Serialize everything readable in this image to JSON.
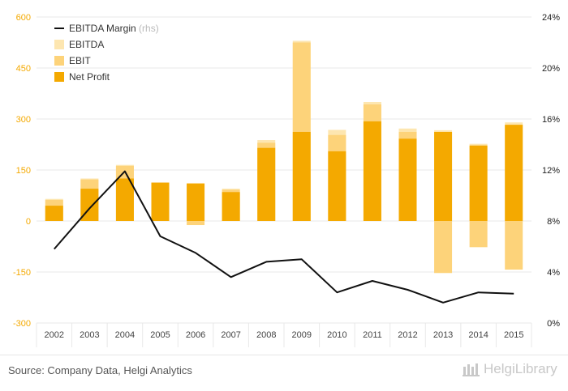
{
  "chart_data": {
    "type": "bar",
    "categories": [
      "2002",
      "2003",
      "2004",
      "2005",
      "2006",
      "2007",
      "2008",
      "2009",
      "2010",
      "2011",
      "2012",
      "2013",
      "2014",
      "2015"
    ],
    "series": [
      {
        "name": "EBITDA",
        "type": "bar",
        "color": "#fde6b0",
        "values": [
          65,
          125,
          165,
          113,
          112,
          95,
          238,
          530,
          268,
          350,
          272,
          267,
          227,
          290
        ]
      },
      {
        "name": "EBIT",
        "type": "bar",
        "color": "#fdd37a",
        "values": [
          62,
          122,
          162,
          110,
          -12,
          92,
          230,
          525,
          253,
          343,
          262,
          -153,
          -77,
          -143
        ]
      },
      {
        "name": "Net Profit",
        "type": "bar",
        "color": "#f4a900",
        "values": [
          45,
          95,
          125,
          113,
          110,
          85,
          215,
          262,
          205,
          293,
          242,
          262,
          222,
          283
        ]
      },
      {
        "name": "EBITDA Margin",
        "name_suffix": "(rhs)",
        "type": "line",
        "axis": "right",
        "color": "#111111",
        "values": [
          5.8,
          9.0,
          11.9,
          6.8,
          5.5,
          3.6,
          4.8,
          5.0,
          2.4,
          3.3,
          2.6,
          1.6,
          2.4,
          2.3
        ]
      }
    ],
    "legend_order": [
      "EBITDA Margin",
      "EBITDA",
      "EBIT",
      "Net Profit"
    ],
    "legend_placement": "top-left",
    "left_axis": {
      "min": -300,
      "max": 600,
      "ticks": [
        "600",
        "450",
        "300",
        "150",
        "0",
        "-150",
        "-300"
      ],
      "tick_values": [
        600,
        450,
        300,
        150,
        0,
        -150,
        -300
      ],
      "color": "#f4a900"
    },
    "right_axis": {
      "min": 0,
      "max": 24,
      "ticks": [
        "24%",
        "20%",
        "16%",
        "12%",
        "8%",
        "4%",
        "0%"
      ],
      "tick_values": [
        24,
        20,
        16,
        12,
        8,
        4,
        0
      ]
    },
    "grid": true
  },
  "footer": {
    "source": "Source: Company Data, Helgi Analytics",
    "logo": "HelgiLibrary"
  }
}
